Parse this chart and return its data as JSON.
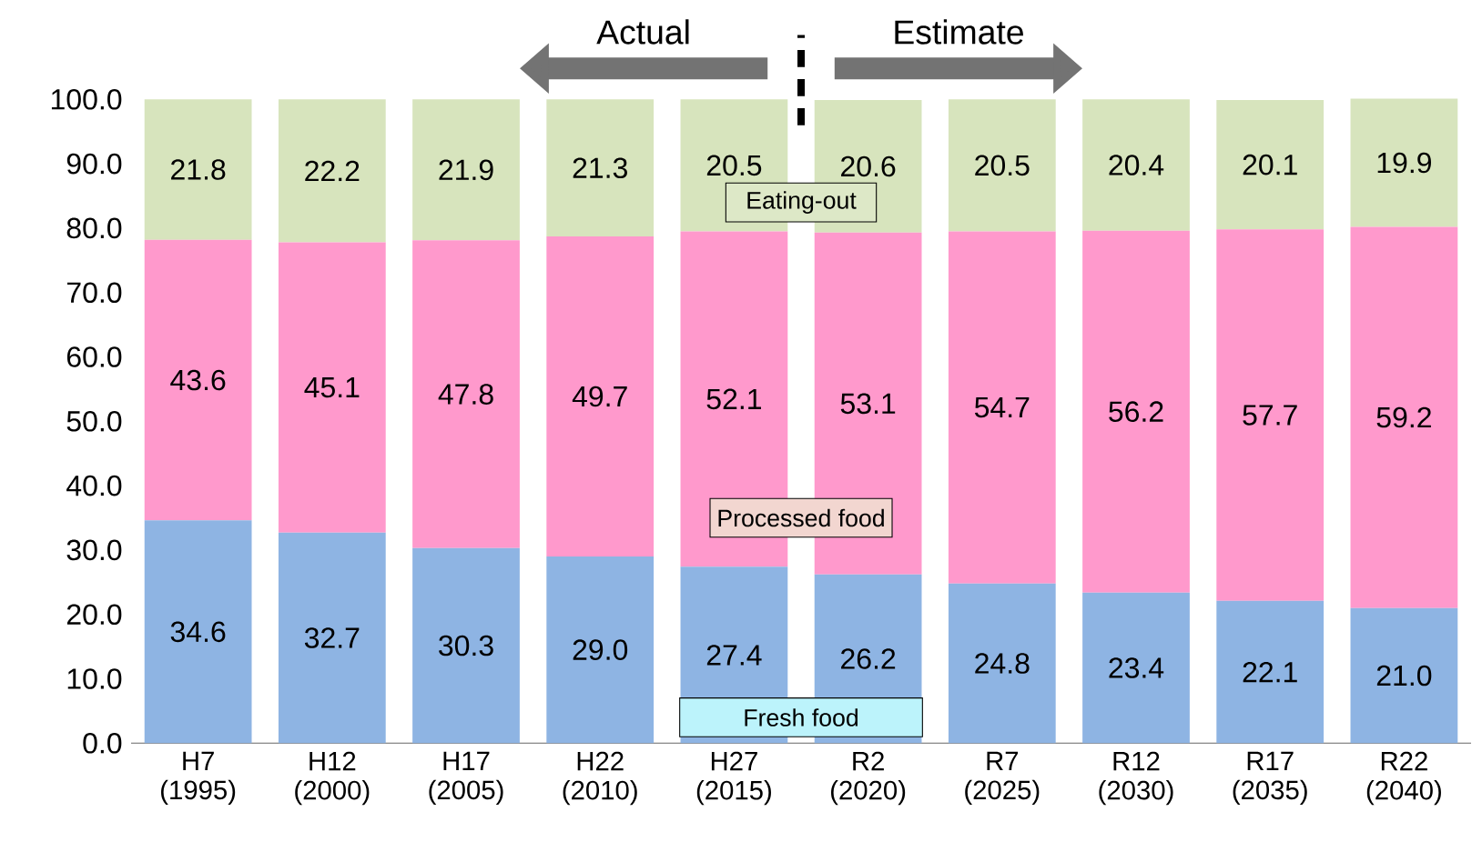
{
  "chart_data": {
    "type": "bar",
    "stacked": true,
    "categories": [
      "H7 (1995)",
      "H12 (2000)",
      "H17 (2005)",
      "H22 (2010)",
      "H27 (2015)",
      "R2 (2020)",
      "R7 (2025)",
      "R12 (2030)",
      "R17 (2035)",
      "R22 (2040)"
    ],
    "series": [
      {
        "name": "Fresh food",
        "color": "#8eb4e3",
        "values": [
          34.6,
          32.7,
          30.3,
          29.0,
          27.4,
          26.2,
          24.8,
          23.4,
          22.1,
          21.0
        ],
        "value_labels": [
          "34.6",
          "32.7",
          "30.3",
          "29.0",
          "27.4",
          "26.2",
          "24.8",
          "23.4",
          "22.1",
          "21.0"
        ]
      },
      {
        "name": "Processed food",
        "color": "#ff99cc",
        "values": [
          43.6,
          45.1,
          47.8,
          49.7,
          52.1,
          53.1,
          54.7,
          56.2,
          57.7,
          59.2
        ],
        "value_labels": [
          "43.6",
          "45.1",
          "47.8",
          "49.7",
          "52.1",
          "53.1",
          "54.7",
          "56.2",
          "57.7",
          "59.2"
        ]
      },
      {
        "name": "Eating-out",
        "color": "#d7e4bd",
        "values": [
          21.8,
          22.2,
          21.9,
          21.3,
          20.5,
          20.6,
          20.5,
          20.4,
          20.1,
          19.9
        ],
        "value_labels": [
          "21.8",
          "22.2",
          "21.9",
          "21.3",
          "20.5",
          "20.6",
          "20.5",
          "20.4",
          "20.1",
          "19.9"
        ]
      }
    ],
    "ylim": [
      0,
      100
    ],
    "yticks": [
      {
        "value": 0,
        "label": "0.0"
      },
      {
        "value": 10,
        "label": "10.0"
      },
      {
        "value": 20,
        "label": "20.0"
      },
      {
        "value": 30,
        "label": "30.0"
      },
      {
        "value": 40,
        "label": "40.0"
      },
      {
        "value": 50,
        "label": "50.0"
      },
      {
        "value": 60,
        "label": "60.0"
      },
      {
        "value": 70,
        "label": "70.0"
      },
      {
        "value": 80,
        "label": "80.0"
      },
      {
        "value": 90,
        "label": "90.0"
      },
      {
        "value": 100,
        "label": "100.0"
      }
    ],
    "annotations": [
      "Actual",
      "Estimate"
    ]
  }
}
